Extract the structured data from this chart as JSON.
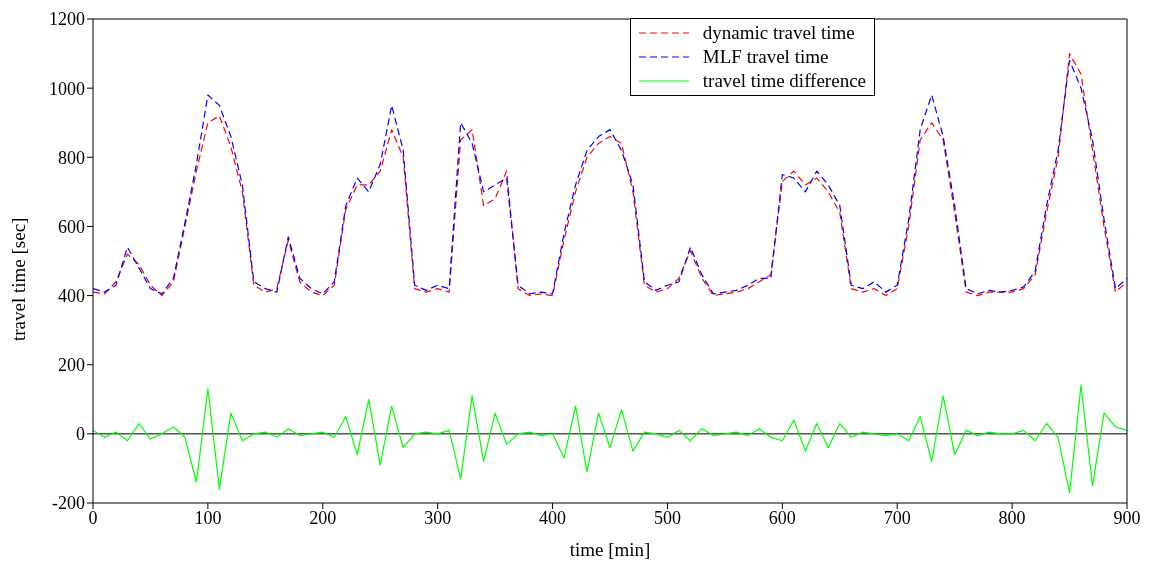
{
  "chart_data": {
    "type": "line",
    "xlabel": "time [min]",
    "ylabel": "travel time [sec]",
    "x": [
      0,
      10,
      20,
      30,
      40,
      50,
      60,
      70,
      80,
      90,
      100,
      110,
      120,
      130,
      140,
      150,
      160,
      170,
      180,
      190,
      200,
      210,
      220,
      230,
      240,
      250,
      260,
      270,
      280,
      290,
      300,
      310,
      320,
      330,
      340,
      350,
      360,
      370,
      380,
      390,
      400,
      410,
      420,
      430,
      440,
      450,
      460,
      470,
      480,
      490,
      500,
      510,
      520,
      530,
      540,
      550,
      560,
      570,
      580,
      590,
      600,
      610,
      620,
      630,
      640,
      650,
      660,
      670,
      680,
      690,
      700,
      710,
      720,
      730,
      740,
      750,
      760,
      770,
      780,
      790,
      800,
      810,
      820,
      830,
      840,
      850,
      860,
      870,
      880,
      890,
      900
    ],
    "series": [
      {
        "name": "dynamic travel time",
        "color": "#ff0000",
        "line_style": "dashed",
        "values": [
          410,
          405,
          440,
          520,
          490,
          430,
          400,
          440,
          600,
          760,
          900,
          920,
          830,
          700,
          430,
          410,
          420,
          560,
          440,
          410,
          400,
          430,
          650,
          720,
          720,
          760,
          880,
          800,
          420,
          410,
          420,
          410,
          850,
          880,
          660,
          680,
          760,
          420,
          400,
          405,
          400,
          560,
          700,
          800,
          840,
          860,
          840,
          700,
          430,
          410,
          420,
          450,
          530,
          450,
          400,
          405,
          410,
          420,
          440,
          460,
          730,
          760,
          720,
          740,
          700,
          640,
          420,
          410,
          420,
          400,
          420,
          600,
          850,
          900,
          850,
          640,
          410,
          400,
          410,
          410,
          410,
          420,
          460,
          640,
          800,
          1100,
          1040,
          820,
          600,
          410,
          440
        ]
      },
      {
        "name": "MLF travel time",
        "color": "#0000ff",
        "line_style": "dashed",
        "values": [
          420,
          410,
          430,
          540,
          480,
          420,
          405,
          450,
          610,
          780,
          980,
          950,
          860,
          720,
          440,
          420,
          410,
          570,
          450,
          420,
          405,
          440,
          660,
          740,
          700,
          780,
          950,
          820,
          430,
          415,
          430,
          420,
          900,
          840,
          700,
          720,
          740,
          430,
          405,
          410,
          405,
          580,
          720,
          820,
          860,
          880,
          820,
          720,
          440,
          415,
          430,
          440,
          540,
          460,
          405,
          410,
          415,
          430,
          450,
          450,
          750,
          740,
          700,
          760,
          720,
          660,
          430,
          420,
          440,
          410,
          430,
          620,
          880,
          980,
          860,
          660,
          420,
          405,
          415,
          410,
          415,
          425,
          470,
          660,
          820,
          1080,
          1000,
          850,
          620,
          420,
          450
        ]
      },
      {
        "name": "travel time difference",
        "color": "#00ff00",
        "line_style": "solid",
        "values": [
          10,
          -10,
          5,
          -20,
          30,
          -15,
          0,
          20,
          -10,
          -140,
          130,
          -160,
          60,
          -20,
          0,
          5,
          -10,
          15,
          -5,
          0,
          5,
          -10,
          50,
          -60,
          100,
          -90,
          80,
          -40,
          0,
          5,
          0,
          10,
          -130,
          110,
          -80,
          60,
          -30,
          0,
          5,
          -5,
          0,
          -70,
          80,
          -110,
          60,
          -40,
          70,
          -50,
          5,
          0,
          -10,
          10,
          -20,
          15,
          -5,
          0,
          5,
          -5,
          15,
          -10,
          -20,
          40,
          -50,
          30,
          -40,
          30,
          -10,
          5,
          0,
          -5,
          0,
          -20,
          50,
          -80,
          110,
          -60,
          10,
          -5,
          5,
          0,
          0,
          10,
          -20,
          30,
          -10,
          -170,
          140,
          -150,
          60,
          20,
          10
        ]
      }
    ],
    "xlim": [
      0,
      900
    ],
    "xticks": [
      0,
      100,
      200,
      300,
      400,
      500,
      600,
      700,
      800,
      900
    ],
    "ylim": [
      -200,
      1200
    ],
    "yticks": [
      -200,
      0,
      200,
      400,
      600,
      800,
      1000,
      1200
    ],
    "ref_lines": [
      {
        "axis": "y",
        "value": 0,
        "color": "#000000"
      }
    ],
    "grid": false,
    "legend": "top right",
    "marker": "none"
  }
}
